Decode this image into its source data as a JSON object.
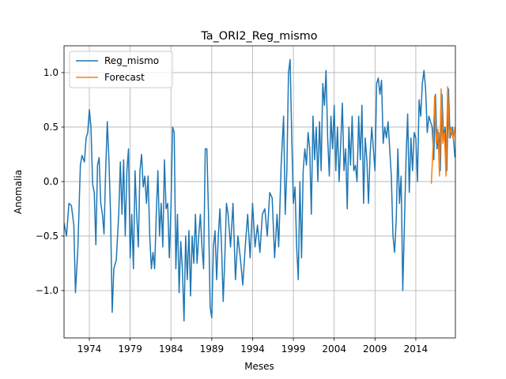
{
  "chart_data": {
    "type": "line",
    "title": "Ta_ORI2_Reg_mismo",
    "xlabel": "Meses",
    "ylabel": "Anomalia",
    "xlim": [
      1970.9,
      2018.85
    ],
    "ylim": [
      -1.435,
      1.246
    ],
    "xticks": [
      1974,
      1979,
      1984,
      1989,
      1994,
      1999,
      2004,
      2009,
      2014
    ],
    "yticks": [
      {
        "value": -1,
        "label": "−1.0"
      },
      {
        "value": -0.5,
        "label": "−0.5"
      },
      {
        "value": 0,
        "label": "0.0"
      },
      {
        "value": 0.5,
        "label": "0.5"
      },
      {
        "value": 1,
        "label": "1.0"
      }
    ],
    "grid": true,
    "legend": "upper left",
    "series": [
      {
        "name": "Reg_mismo",
        "color": "#1f77b4",
        "x": [
          1970.9,
          1971.2,
          1971.5,
          1971.8,
          1972.1,
          1972.3,
          1972.6,
          1972.9,
          1973.1,
          1973.4,
          1973.6,
          1973.8,
          1974.0,
          1974.2,
          1974.4,
          1974.6,
          1974.8,
          1975.0,
          1975.2,
          1975.4,
          1975.6,
          1975.8,
          1976.0,
          1976.2,
          1976.4,
          1976.6,
          1976.8,
          1977.0,
          1977.3,
          1977.6,
          1977.8,
          1978.0,
          1978.2,
          1978.4,
          1978.6,
          1978.8,
          1979.0,
          1979.2,
          1979.4,
          1979.6,
          1979.8,
          1980.0,
          1980.2,
          1980.4,
          1980.6,
          1980.8,
          1981.0,
          1981.2,
          1981.4,
          1981.6,
          1981.8,
          1982.0,
          1982.2,
          1982.4,
          1982.6,
          1982.8,
          1983.0,
          1983.2,
          1983.4,
          1983.6,
          1983.8,
          1984.0,
          1984.2,
          1984.4,
          1984.6,
          1984.8,
          1985.0,
          1985.2,
          1985.4,
          1985.6,
          1985.8,
          1986.0,
          1986.2,
          1986.4,
          1986.6,
          1986.8,
          1987.0,
          1987.2,
          1987.4,
          1987.6,
          1987.8,
          1988.0,
          1988.2,
          1988.4,
          1988.6,
          1988.8,
          1989.0,
          1989.2,
          1989.4,
          1989.6,
          1989.8,
          1990.0,
          1990.2,
          1990.4,
          1990.6,
          1990.8,
          1991.0,
          1991.3,
          1991.6,
          1991.9,
          1992.2,
          1992.5,
          1992.8,
          1993.1,
          1993.4,
          1993.7,
          1994.0,
          1994.3,
          1994.6,
          1994.9,
          1995.2,
          1995.5,
          1995.8,
          1996.1,
          1996.4,
          1996.7,
          1997.0,
          1997.2,
          1997.5,
          1997.8,
          1998.0,
          1998.2,
          1998.4,
          1998.6,
          1998.8,
          1999.0,
          1999.2,
          1999.4,
          1999.6,
          1999.8,
          2000.0,
          2000.2,
          2000.4,
          2000.6,
          2000.8,
          2001.0,
          2001.2,
          2001.4,
          2001.6,
          2001.8,
          2002.0,
          2002.2,
          2002.4,
          2002.6,
          2002.8,
          2003.0,
          2003.2,
          2003.4,
          2003.6,
          2003.8,
          2004.0,
          2004.2,
          2004.4,
          2004.6,
          2004.8,
          2005.0,
          2005.2,
          2005.4,
          2005.6,
          2005.8,
          2006.0,
          2006.2,
          2006.4,
          2006.6,
          2006.8,
          2007.0,
          2007.2,
          2007.4,
          2007.6,
          2007.8,
          2008.0,
          2008.2,
          2008.4,
          2008.6,
          2008.8,
          2009.0,
          2009.2,
          2009.4,
          2009.6,
          2009.8,
          2010.0,
          2010.2,
          2010.4,
          2010.6,
          2010.8,
          2011.0,
          2011.2,
          2011.4,
          2011.6,
          2011.8,
          2012.0,
          2012.2,
          2012.4,
          2012.6,
          2012.8,
          2013.0,
          2013.2,
          2013.4,
          2013.6,
          2013.8,
          2014.0,
          2014.2,
          2014.4,
          2014.6,
          2014.8,
          2015.0,
          2015.2,
          2015.4,
          2015.6,
          2015.8,
          2016.0,
          2016.2,
          2016.4,
          2016.6,
          2016.8,
          2017.0,
          2017.2,
          2017.4,
          2017.6,
          2017.8,
          2018.0,
          2018.2,
          2018.5,
          2018.8
        ],
        "values": [
          -0.38,
          -0.5,
          -0.2,
          -0.22,
          -0.4,
          -1.02,
          -0.6,
          0.15,
          0.24,
          0.18,
          0.4,
          0.45,
          0.66,
          0.5,
          -0.02,
          -0.1,
          -0.58,
          0.15,
          0.22,
          -0.2,
          -0.3,
          -0.48,
          0.1,
          0.55,
          0.2,
          -0.3,
          -1.2,
          -0.8,
          -0.72,
          -0.3,
          0.18,
          -0.3,
          0.2,
          -0.5,
          0.1,
          0.3,
          -0.7,
          -0.3,
          -0.8,
          0.1,
          -0.3,
          -0.6,
          0.1,
          0.25,
          -0.05,
          0.05,
          -0.2,
          0.05,
          -0.5,
          -0.8,
          -0.65,
          -0.8,
          -0.3,
          0.1,
          -0.5,
          -0.2,
          -0.6,
          0.2,
          -0.25,
          -0.2,
          -0.7,
          -0.25,
          0.5,
          0.45,
          -0.8,
          -0.3,
          -1.02,
          -0.55,
          -0.8,
          -1.28,
          -0.5,
          -0.9,
          -0.45,
          -1.05,
          -0.5,
          -0.75,
          -0.3,
          -0.75,
          -0.5,
          -0.3,
          -0.6,
          -0.8,
          0.3,
          0.3,
          -0.3,
          -1.15,
          -1.25,
          -0.6,
          -0.45,
          -0.9,
          -0.5,
          -0.25,
          -0.6,
          -1.1,
          -0.7,
          -0.2,
          -0.3,
          -0.6,
          -0.2,
          -0.9,
          -0.5,
          -0.7,
          -0.95,
          -0.6,
          -0.3,
          -0.7,
          -0.2,
          -0.6,
          -0.4,
          -0.65,
          -0.3,
          -0.25,
          -0.5,
          -0.1,
          -0.15,
          -0.7,
          -0.3,
          -0.6,
          0.15,
          0.6,
          -0.3,
          0.1,
          1.0,
          1.12,
          0.4,
          -0.2,
          -0.05,
          -0.6,
          -0.9,
          0.0,
          -0.7,
          0.1,
          0.3,
          0.15,
          0.45,
          0.3,
          -0.3,
          0.6,
          0.2,
          0.5,
          0.0,
          0.55,
          0.1,
          0.9,
          0.7,
          1.02,
          0.4,
          0.05,
          0.6,
          0.3,
          0.7,
          0.1,
          0.5,
          0.0,
          0.35,
          0.72,
          0.1,
          0.3,
          -0.25,
          0.5,
          0.15,
          0.6,
          0.1,
          0.15,
          0.0,
          0.6,
          0.2,
          0.7,
          -0.2,
          0.4,
          0.2,
          -0.2,
          0.25,
          0.5,
          0.3,
          0.1,
          0.9,
          0.95,
          0.8,
          0.93,
          0.35,
          0.5,
          0.4,
          0.55,
          0.3,
          0.05,
          -0.5,
          -0.65,
          -0.35,
          0.3,
          -0.2,
          0.05,
          -1.0,
          -0.4,
          0.2,
          0.62,
          -0.1,
          0.4,
          0.1,
          0.45,
          0.4,
          0.0,
          0.75,
          0.6,
          0.9,
          1.02,
          0.85,
          0.45,
          0.6,
          0.55,
          0.5,
          0.2,
          0.8,
          0.3,
          0.45,
          0.1,
          0.8,
          0.4,
          0.5,
          0.1,
          0.85,
          0.4,
          0.5,
          0.22
        ]
      },
      {
        "name": "Forecast",
        "color": "#ff7f0e",
        "x": [
          2015.9,
          2016.1,
          2016.3,
          2016.5,
          2016.7,
          2016.9,
          2017.1,
          2017.3,
          2017.5,
          2017.7,
          2017.9,
          2018.1,
          2018.3,
          2018.6,
          2018.8
        ],
        "values": [
          -0.02,
          0.3,
          0.78,
          0.35,
          0.48,
          0.05,
          0.85,
          0.35,
          0.45,
          0.05,
          0.87,
          0.4,
          0.5,
          0.38,
          0.5
        ]
      }
    ]
  }
}
